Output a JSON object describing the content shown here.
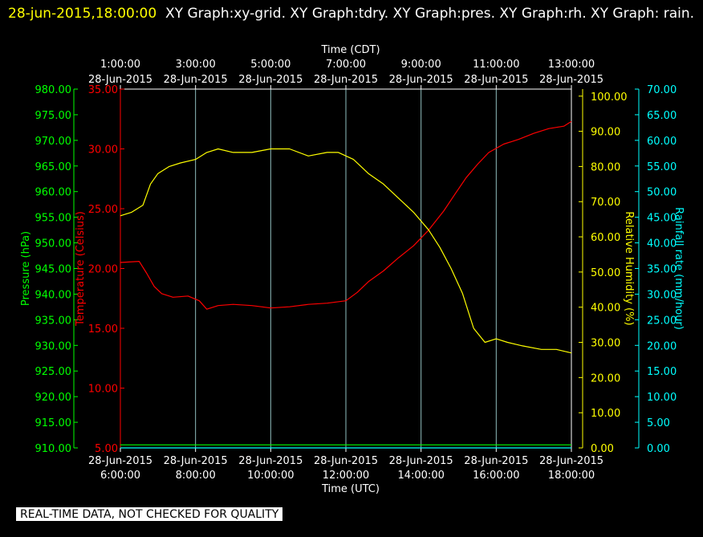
{
  "header": {
    "timestamp": "28-jun-2015,18:00:00",
    "title": "XY Graph:xy-grid.  XY Graph:tdry.  XY Graph:pres.  XY Graph:rh.  XY Graph: rain."
  },
  "footer_note": "REAL-TIME DATA, NOT CHECKED FOR QUALITY",
  "colors": {
    "background": "#000000",
    "temperature": "#ff0000",
    "pressure": "#00ff00",
    "humidity": "#ffff00",
    "rain": "#00ffff",
    "grid": "#c0ffff",
    "plot_frame": "#ffffff"
  },
  "chart_data": {
    "type": "line",
    "title": "",
    "top_axis": {
      "label": "Time (CDT)",
      "ticks": [
        {
          "time": "1:00:00",
          "date": "28-Jun-2015"
        },
        {
          "time": "3:00:00",
          "date": "28-Jun-2015"
        },
        {
          "time": "5:00:00",
          "date": "28-Jun-2015"
        },
        {
          "time": "7:00:00",
          "date": "28-Jun-2015"
        },
        {
          "time": "9:00:00",
          "date": "28-Jun-2015"
        },
        {
          "time": "11:00:00",
          "date": "28-Jun-2015"
        },
        {
          "time": "13:00:00",
          "date": "28-Jun-2015"
        }
      ]
    },
    "bottom_axis": {
      "label": "Time (UTC)",
      "ticks": [
        {
          "time": "6:00:00",
          "date": "28-Jun-2015"
        },
        {
          "time": "8:00:00",
          "date": "28-Jun-2015"
        },
        {
          "time": "10:00:00",
          "date": "28-Jun-2015"
        },
        {
          "time": "12:00:00",
          "date": "28-Jun-2015"
        },
        {
          "time": "14:00:00",
          "date": "28-Jun-2015"
        },
        {
          "time": "16:00:00",
          "date": "28-Jun-2015"
        },
        {
          "time": "18:00:00",
          "date": "28-Jun-2015"
        }
      ]
    },
    "xlim_utc_hours": [
      6,
      18
    ],
    "grid": true,
    "axes": {
      "pressure": {
        "label": "Pressure (hPa)",
        "ylim": [
          910,
          980
        ],
        "ticks": [
          "910.00",
          "915.00",
          "920.00",
          "925.00",
          "930.00",
          "935.00",
          "940.00",
          "945.00",
          "950.00",
          "955.00",
          "960.00",
          "965.00",
          "970.00",
          "975.00",
          "980.00"
        ]
      },
      "temperature": {
        "label": "Temperature (Celsius)",
        "ylim": [
          5,
          35
        ],
        "ticks": [
          "5.00",
          "10.00",
          "15.00",
          "20.00",
          "25.00",
          "30.00",
          "35.00"
        ]
      },
      "humidity": {
        "label": "Relative Humidity (%)",
        "ylim": [
          0,
          102
        ],
        "ticks": [
          "0.00",
          "10.00",
          "20.00",
          "30.00",
          "40.00",
          "50.00",
          "60.00",
          "70.00",
          "80.00",
          "90.00",
          "100.00"
        ]
      },
      "rain": {
        "label": "Rainfall rate (mm/hour)",
        "ylim": [
          0,
          70
        ],
        "ticks": [
          "0.00",
          "5.00",
          "10.00",
          "15.00",
          "20.00",
          "25.00",
          "30.00",
          "35.00",
          "40.00",
          "45.00",
          "50.00",
          "55.00",
          "60.00",
          "65.00",
          "70.00"
        ]
      }
    },
    "series": [
      {
        "name": "Temperature (Celsius)",
        "axis": "temperature",
        "x": [
          6.0,
          6.5,
          6.7,
          6.9,
          7.1,
          7.4,
          7.8,
          8.1,
          8.3,
          8.6,
          9.0,
          9.5,
          10.0,
          10.5,
          11.0,
          11.5,
          12.0,
          12.3,
          12.6,
          13.0,
          13.4,
          13.8,
          14.2,
          14.6,
          14.9,
          15.2,
          15.5,
          15.8,
          16.2,
          16.6,
          17.0,
          17.4,
          17.8,
          18.0
        ],
        "values": [
          20.5,
          20.6,
          19.6,
          18.5,
          17.9,
          17.6,
          17.7,
          17.3,
          16.6,
          16.9,
          17.0,
          16.9,
          16.7,
          16.8,
          17.0,
          17.1,
          17.3,
          18.0,
          18.9,
          19.8,
          20.9,
          21.9,
          23.2,
          24.8,
          26.2,
          27.6,
          28.7,
          29.7,
          30.4,
          30.8,
          31.3,
          31.7,
          31.9,
          32.3
        ]
      },
      {
        "name": "Pressure (hPa)",
        "axis": "pressure",
        "x": [
          6.0,
          18.0
        ],
        "values": [
          910.6,
          910.6
        ]
      },
      {
        "name": "Relative Humidity (%)",
        "axis": "humidity",
        "x": [
          6.0,
          6.3,
          6.6,
          6.8,
          7.0,
          7.3,
          7.6,
          8.0,
          8.3,
          8.6,
          9.0,
          9.5,
          10.0,
          10.5,
          11.0,
          11.5,
          11.8,
          12.2,
          12.6,
          13.0,
          13.4,
          13.8,
          14.2,
          14.5,
          14.8,
          15.1,
          15.4,
          15.7,
          16.0,
          16.3,
          16.7,
          17.2,
          17.6,
          18.0
        ],
        "values": [
          66,
          67,
          69,
          75,
          78,
          80,
          81,
          82,
          84,
          85,
          84,
          84,
          85,
          85,
          83,
          84,
          84,
          82,
          78,
          75,
          71,
          67,
          62,
          57,
          51,
          44,
          34,
          30,
          31,
          30,
          29,
          28,
          28,
          27
        ]
      },
      {
        "name": "Rainfall rate (mm/hour)",
        "axis": "rain",
        "x": [
          6.0,
          18.0
        ],
        "values": [
          0,
          0
        ]
      }
    ]
  }
}
